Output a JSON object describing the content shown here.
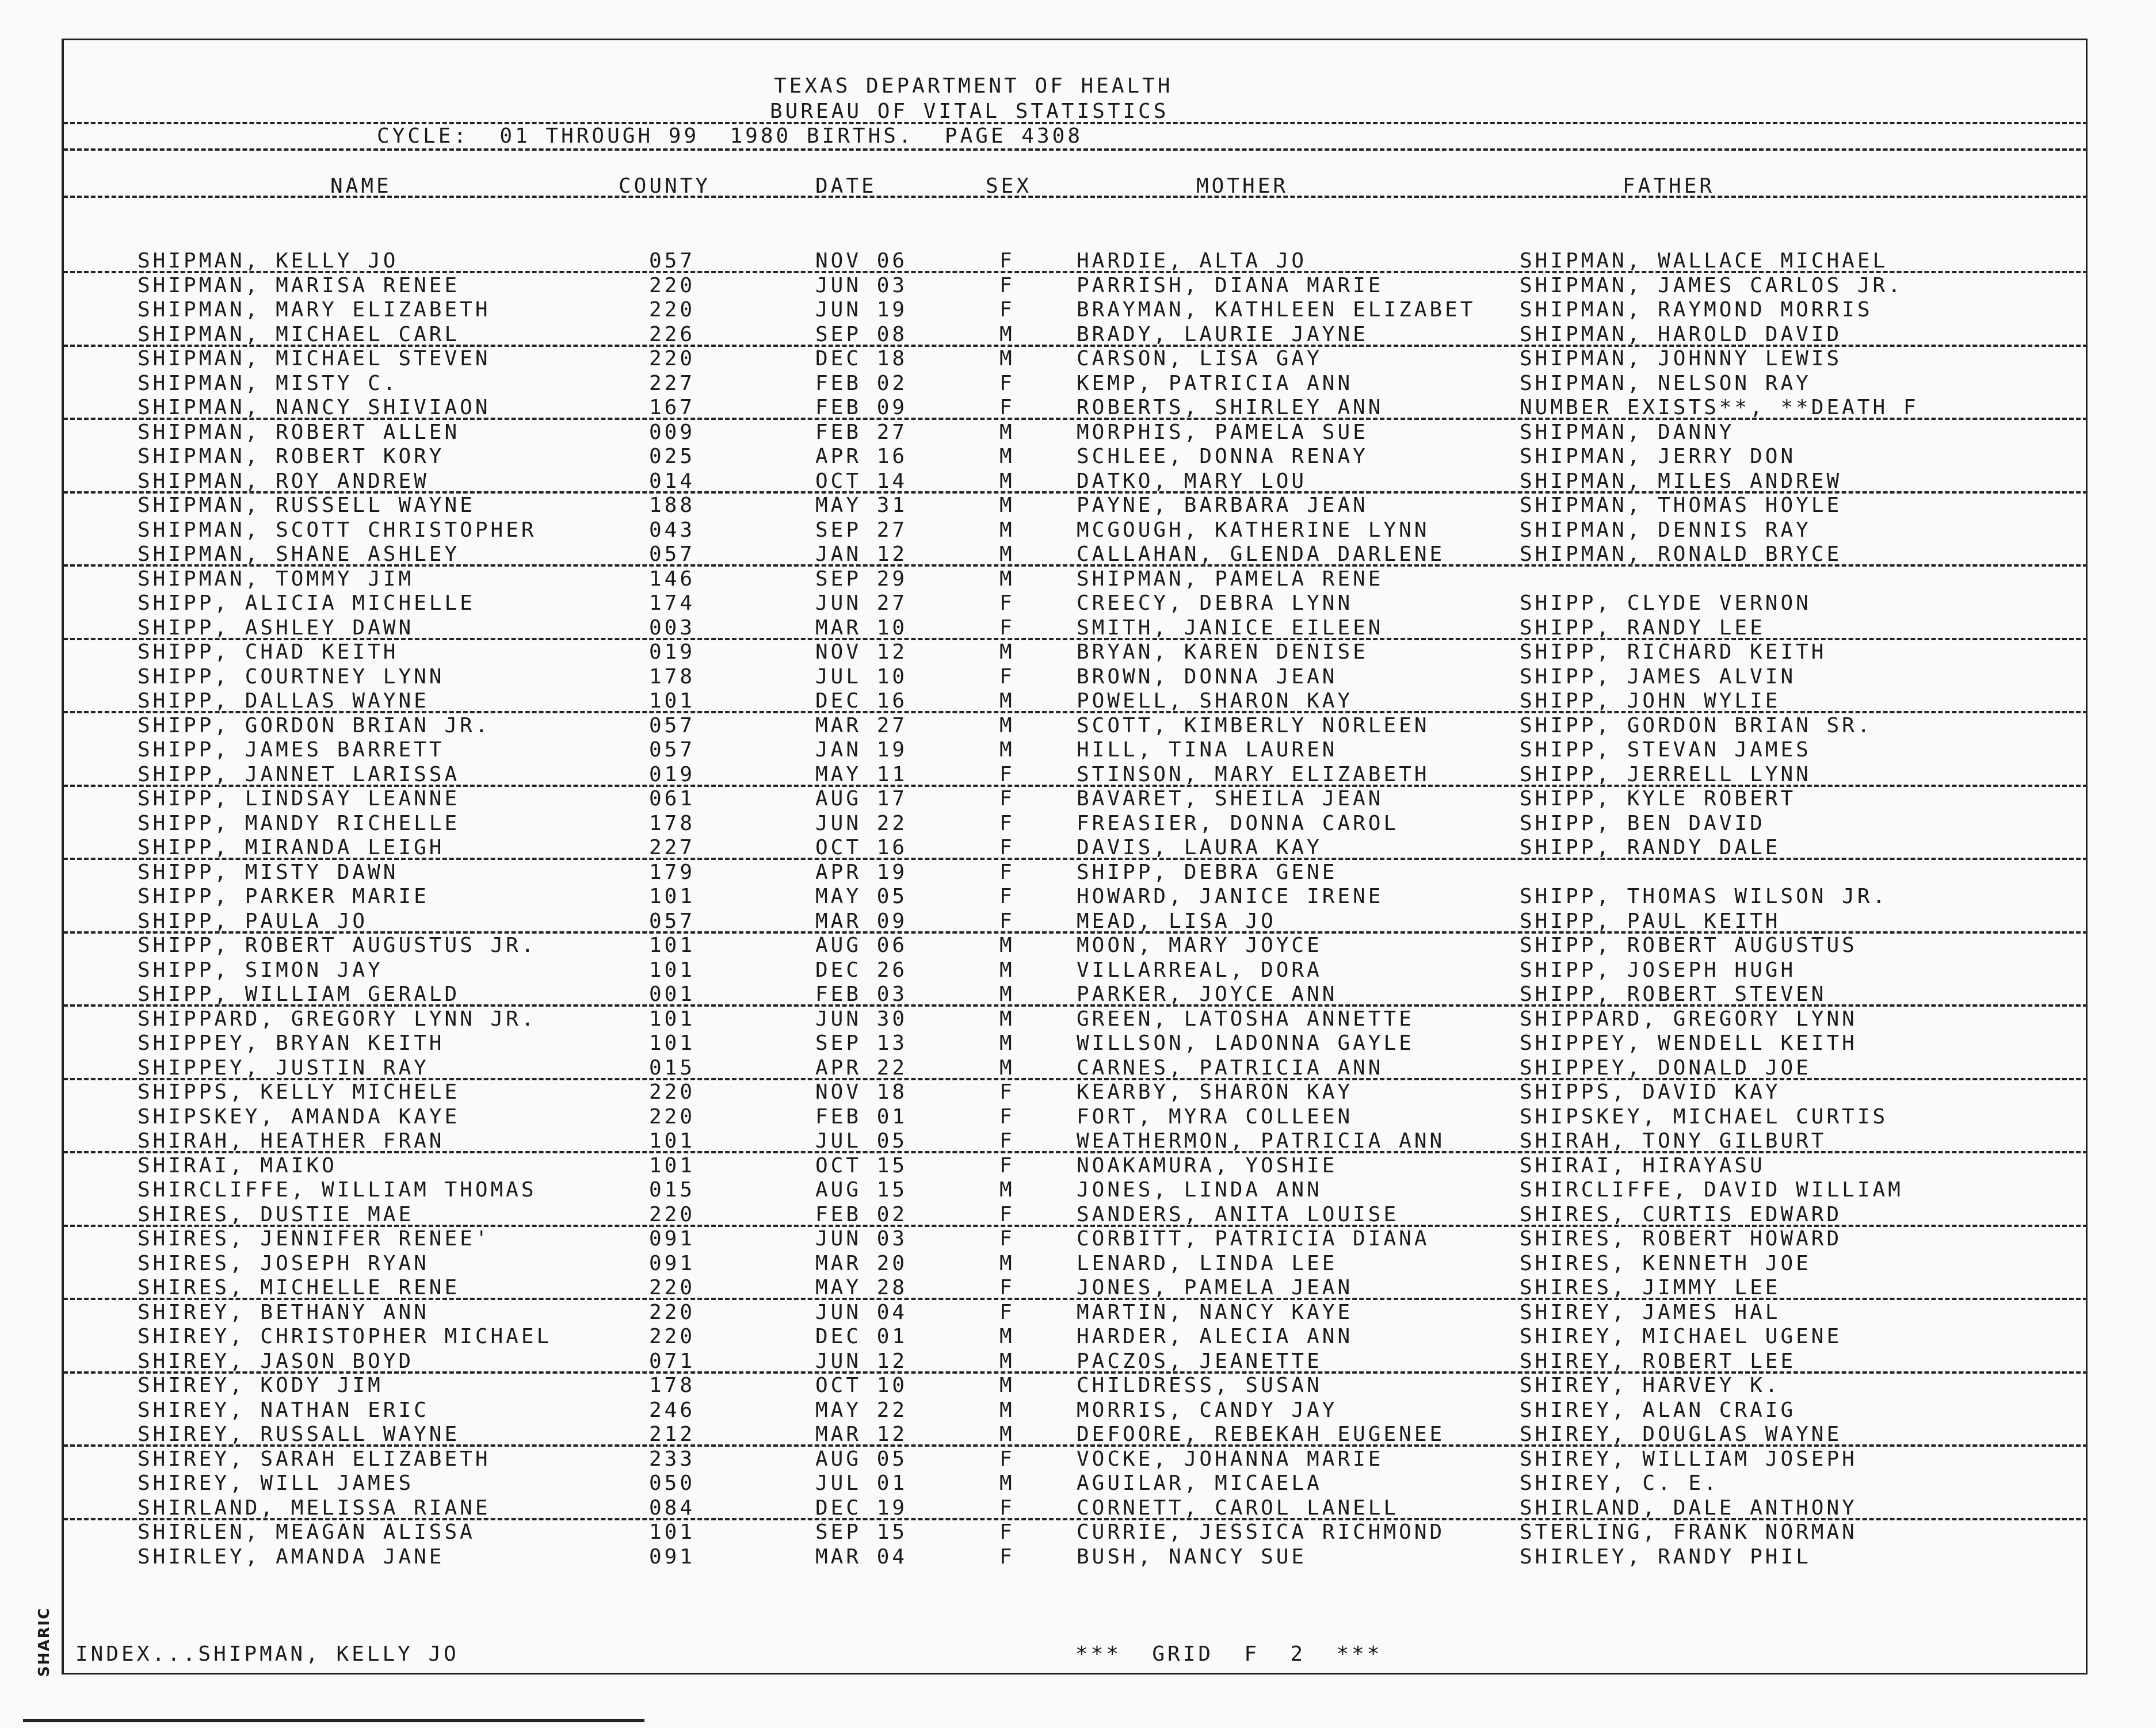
{
  "header": {
    "line1": "TEXAS DEPARTMENT OF HEALTH",
    "line2": "BUREAU OF VITAL STATISTICS",
    "cycle": "CYCLE:  01 THROUGH 99  1980 BIRTHS.  PAGE 4308"
  },
  "columns": {
    "name": "NAME",
    "county": "COUNTY",
    "date": "DATE",
    "sex": "SEX",
    "mother": "MOTHER",
    "father": "FATHER"
  },
  "rows": [
    [
      "SHIPMAN, KELLY JO",
      "057",
      "NOV 06",
      "F",
      "HARDIE, ALTA JO",
      "SHIPMAN, WALLACE MICHAEL"
    ],
    [
      "SHIPMAN, MARISA RENEE",
      "220",
      "JUN 03",
      "F",
      "PARRISH, DIANA MARIE",
      "SHIPMAN, JAMES CARLOS JR."
    ],
    [
      "SHIPMAN, MARY ELIZABETH",
      "220",
      "JUN 19",
      "F",
      "BRAYMAN, KATHLEEN ELIZABET",
      "SHIPMAN, RAYMOND MORRIS"
    ],
    [
      "SHIPMAN, MICHAEL CARL",
      "226",
      "SEP 08",
      "M",
      "BRADY, LAURIE JAYNE",
      "SHIPMAN, HAROLD DAVID"
    ],
    [
      "SHIPMAN, MICHAEL STEVEN",
      "220",
      "DEC 18",
      "M",
      "CARSON, LISA GAY",
      "SHIPMAN, JOHNNY LEWIS"
    ],
    [
      "SHIPMAN, MISTY C.",
      "227",
      "FEB 02",
      "F",
      "KEMP, PATRICIA ANN",
      "SHIPMAN, NELSON RAY"
    ],
    [
      "SHIPMAN, NANCY SHIVIAON",
      "167",
      "FEB 09",
      "F",
      "ROBERTS, SHIRLEY ANN",
      "NUMBER EXISTS**, **DEATH F"
    ],
    [
      "SHIPMAN, ROBERT ALLEN",
      "009",
      "FEB 27",
      "M",
      "MORPHIS, PAMELA SUE",
      "SHIPMAN, DANNY"
    ],
    [
      "SHIPMAN, ROBERT KORY",
      "025",
      "APR 16",
      "M",
      "SCHLEE, DONNA RENAY",
      "SHIPMAN, JERRY DON"
    ],
    [
      "SHIPMAN, ROY ANDREW",
      "014",
      "OCT 14",
      "M",
      "DATKO, MARY LOU",
      "SHIPMAN, MILES ANDREW"
    ],
    [
      "SHIPMAN, RUSSELL WAYNE",
      "188",
      "MAY 31",
      "M",
      "PAYNE, BARBARA JEAN",
      "SHIPMAN, THOMAS HOYLE"
    ],
    [
      "SHIPMAN, SCOTT CHRISTOPHER",
      "043",
      "SEP 27",
      "M",
      "MCGOUGH, KATHERINE LYNN",
      "SHIPMAN, DENNIS RAY"
    ],
    [
      "SHIPMAN, SHANE ASHLEY",
      "057",
      "JAN 12",
      "M",
      "CALLAHAN, GLENDA DARLENE",
      "SHIPMAN, RONALD BRYCE"
    ],
    [
      "SHIPMAN, TOMMY JIM",
      "146",
      "SEP 29",
      "M",
      "SHIPMAN, PAMELA RENE",
      ""
    ],
    [
      "SHIPP, ALICIA MICHELLE",
      "174",
      "JUN 27",
      "F",
      "CREECY, DEBRA LYNN",
      "SHIPP, CLYDE VERNON"
    ],
    [
      "SHIPP, ASHLEY DAWN",
      "003",
      "MAR 10",
      "F",
      "SMITH, JANICE EILEEN",
      "SHIPP, RANDY LEE"
    ],
    [
      "SHIPP, CHAD KEITH",
      "019",
      "NOV 12",
      "M",
      "BRYAN, KAREN DENISE",
      "SHIPP, RICHARD KEITH"
    ],
    [
      "SHIPP, COURTNEY LYNN",
      "178",
      "JUL 10",
      "F",
      "BROWN, DONNA JEAN",
      "SHIPP, JAMES ALVIN"
    ],
    [
      "SHIPP, DALLAS WAYNE",
      "101",
      "DEC 16",
      "M",
      "POWELL, SHARON KAY",
      "SHIPP, JOHN WYLIE"
    ],
    [
      "SHIPP, GORDON BRIAN JR.",
      "057",
      "MAR 27",
      "M",
      "SCOTT, KIMBERLY NORLEEN",
      "SHIPP, GORDON BRIAN SR."
    ],
    [
      "SHIPP, JAMES BARRETT",
      "057",
      "JAN 19",
      "M",
      "HILL, TINA LAUREN",
      "SHIPP, STEVAN JAMES"
    ],
    [
      "SHIPP, JANNET LARISSA",
      "019",
      "MAY 11",
      "F",
      "STINSON, MARY ELIZABETH",
      "SHIPP, JERRELL LYNN"
    ],
    [
      "SHIPP, LINDSAY LEANNE",
      "061",
      "AUG 17",
      "F",
      "BAVARET, SHEILA JEAN",
      "SHIPP, KYLE ROBERT"
    ],
    [
      "SHIPP, MANDY RICHELLE",
      "178",
      "JUN 22",
      "F",
      "FREASIER, DONNA CAROL",
      "SHIPP, BEN DAVID"
    ],
    [
      "SHIPP, MIRANDA LEIGH",
      "227",
      "OCT 16",
      "F",
      "DAVIS, LAURA KAY",
      "SHIPP, RANDY DALE"
    ],
    [
      "SHIPP, MISTY DAWN",
      "179",
      "APR 19",
      "F",
      "SHIPP, DEBRA GENE",
      ""
    ],
    [
      "SHIPP, PARKER MARIE",
      "101",
      "MAY 05",
      "F",
      "HOWARD, JANICE IRENE",
      "SHIPP, THOMAS WILSON JR."
    ],
    [
      "SHIPP, PAULA JO",
      "057",
      "MAR 09",
      "F",
      "MEAD, LISA JO",
      "SHIPP, PAUL KEITH"
    ],
    [
      "SHIPP, ROBERT AUGUSTUS JR.",
      "101",
      "AUG 06",
      "M",
      "MOON, MARY JOYCE",
      "SHIPP, ROBERT AUGUSTUS"
    ],
    [
      "SHIPP, SIMON JAY",
      "101",
      "DEC 26",
      "M",
      "VILLARREAL, DORA",
      "SHIPP, JOSEPH HUGH"
    ],
    [
      "SHIPP, WILLIAM GERALD",
      "001",
      "FEB 03",
      "M",
      "PARKER, JOYCE ANN",
      "SHIPP, ROBERT STEVEN"
    ],
    [
      "SHIPPARD, GREGORY LYNN JR.",
      "101",
      "JUN 30",
      "M",
      "GREEN, LATOSHA ANNETTE",
      "SHIPPARD, GREGORY LYNN"
    ],
    [
      "SHIPPEY, BRYAN KEITH",
      "101",
      "SEP 13",
      "M",
      "WILLSON, LADONNA GAYLE",
      "SHIPPEY, WENDELL KEITH"
    ],
    [
      "SHIPPEY, JUSTIN RAY",
      "015",
      "APR 22",
      "M",
      "CARNES, PATRICIA ANN",
      "SHIPPEY, DONALD JOE"
    ],
    [
      "SHIPPS, KELLY MICHELE",
      "220",
      "NOV 18",
      "F",
      "KEARBY, SHARON KAY",
      "SHIPPS, DAVID KAY"
    ],
    [
      "SHIPSKEY, AMANDA KAYE",
      "220",
      "FEB 01",
      "F",
      "FORT, MYRA COLLEEN",
      "SHIPSKEY, MICHAEL CURTIS"
    ],
    [
      "SHIRAH, HEATHER FRAN",
      "101",
      "JUL 05",
      "F",
      "WEATHERMON, PATRICIA ANN",
      "SHIRAH, TONY GILBURT"
    ],
    [
      "SHIRAI, MAIKO",
      "101",
      "OCT 15",
      "F",
      "NOAKAMURA, YOSHIE",
      "SHIRAI, HIRAYASU"
    ],
    [
      "SHIRCLIFFE, WILLIAM THOMAS",
      "015",
      "AUG 15",
      "M",
      "JONES, LINDA ANN",
      "SHIRCLIFFE, DAVID WILLIAM"
    ],
    [
      "SHIRES, DUSTIE MAE",
      "220",
      "FEB 02",
      "F",
      "SANDERS, ANITA LOUISE",
      "SHIRES, CURTIS EDWARD"
    ],
    [
      "SHIRES, JENNIFER RENEE'",
      "091",
      "JUN 03",
      "F",
      "CORBITT, PATRICIA DIANA",
      "SHIRES, ROBERT HOWARD"
    ],
    [
      "SHIRES, JOSEPH RYAN",
      "091",
      "MAR 20",
      "M",
      "LENARD, LINDA LEE",
      "SHIRES, KENNETH JOE"
    ],
    [
      "SHIRES, MICHELLE RENE",
      "220",
      "MAY 28",
      "F",
      "JONES, PAMELA JEAN",
      "SHIRES, JIMMY LEE"
    ],
    [
      "SHIREY, BETHANY ANN",
      "220",
      "JUN 04",
      "F",
      "MARTIN, NANCY KAYE",
      "SHIREY, JAMES HAL"
    ],
    [
      "SHIREY, CHRISTOPHER MICHAEL",
      "220",
      "DEC 01",
      "M",
      "HARDER, ALECIA ANN",
      "SHIREY, MICHAEL UGENE"
    ],
    [
      "SHIREY, JASON BOYD",
      "071",
      "JUN 12",
      "M",
      "PACZOS, JEANETTE",
      "SHIREY, ROBERT LEE"
    ],
    [
      "SHIREY, KODY JIM",
      "178",
      "OCT 10",
      "M",
      "CHILDRESS, SUSAN",
      "SHIREY, HARVEY K."
    ],
    [
      "SHIREY, NATHAN ERIC",
      "246",
      "MAY 22",
      "M",
      "MORRIS, CANDY JAY",
      "SHIREY, ALAN CRAIG"
    ],
    [
      "SHIREY, RUSSALL WAYNE",
      "212",
      "MAR 12",
      "M",
      "DEFOORE, REBEKAH EUGENEE",
      "SHIREY, DOUGLAS WAYNE"
    ],
    [
      "SHIREY, SARAH ELIZABETH",
      "233",
      "AUG 05",
      "F",
      "VOCKE, JOHANNA MARIE",
      "SHIREY, WILLIAM JOSEPH"
    ],
    [
      "SHIREY, WILL JAMES",
      "050",
      "JUL 01",
      "M",
      "AGUILAR, MICAELA",
      "SHIREY, C. E."
    ],
    [
      "SHIRLAND, MELISSA RIANE",
      "084",
      "DEC 19",
      "F",
      "CORNETT, CAROL LANELL",
      "SHIRLAND, DALE ANTHONY"
    ],
    [
      "SHIRLEN, MEAGAN ALISSA",
      "101",
      "SEP 15",
      "F",
      "CURRIE, JESSICA RICHMOND",
      "STERLING, FRANK NORMAN"
    ],
    [
      "SHIRLEY, AMANDA JANE",
      "091",
      "MAR 04",
      "F",
      "BUSH, NANCY SUE",
      "SHIRLEY, RANDY PHIL"
    ]
  ],
  "footer": {
    "index": "INDEX...SHIPMAN, KELLY JO",
    "grid": "***  GRID  F  2  ***"
  },
  "margin_stamp": "SHARIC"
}
